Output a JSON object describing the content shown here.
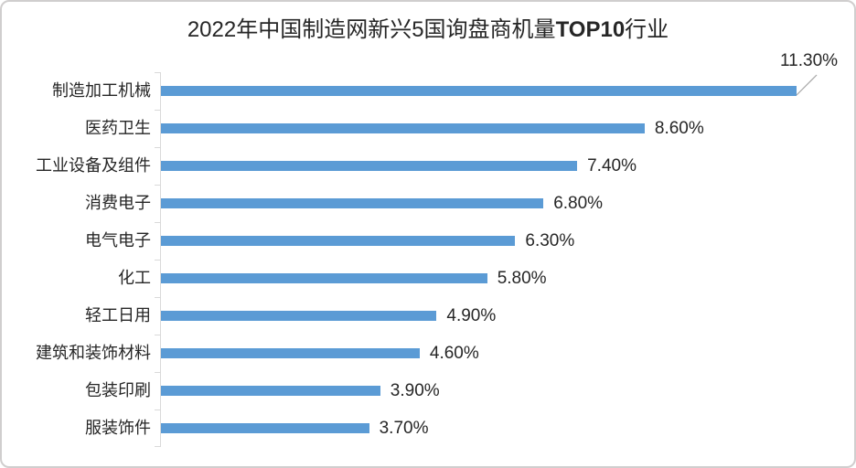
{
  "title": {
    "prefix": "2022年中国制造网新兴5国询盘商机量",
    "bold": "TOP10",
    "suffix": "行业"
  },
  "chart_data": {
    "type": "bar",
    "orientation": "horizontal",
    "title": "2022年中国制造网新兴5国询盘商机量TOP10行业",
    "categories": [
      "制造加工机械",
      "医药卫生",
      "工业设备及组件",
      "消费电子",
      "电气电子",
      "化工",
      "轻工日用",
      "建筑和装饰材料",
      "包装印刷",
      "服装饰件"
    ],
    "values": [
      11.3,
      8.6,
      7.4,
      6.8,
      6.3,
      5.8,
      4.9,
      4.6,
      3.9,
      3.7
    ],
    "value_labels": [
      "11.30%",
      "8.60%",
      "7.40%",
      "6.80%",
      "6.30%",
      "5.80%",
      "4.90%",
      "4.60%",
      "3.90%",
      "3.70%"
    ],
    "xlabel": "",
    "ylabel": "",
    "xlim": [
      0,
      12
    ],
    "grid": false,
    "legend": false,
    "callout_index": 0,
    "bar_color": "#5B9BD5",
    "axis_color": "#D9D9D9",
    "text_color": "#262626",
    "leader_line_color": "#A6A6A6",
    "border_color": "#D0CECE"
  }
}
